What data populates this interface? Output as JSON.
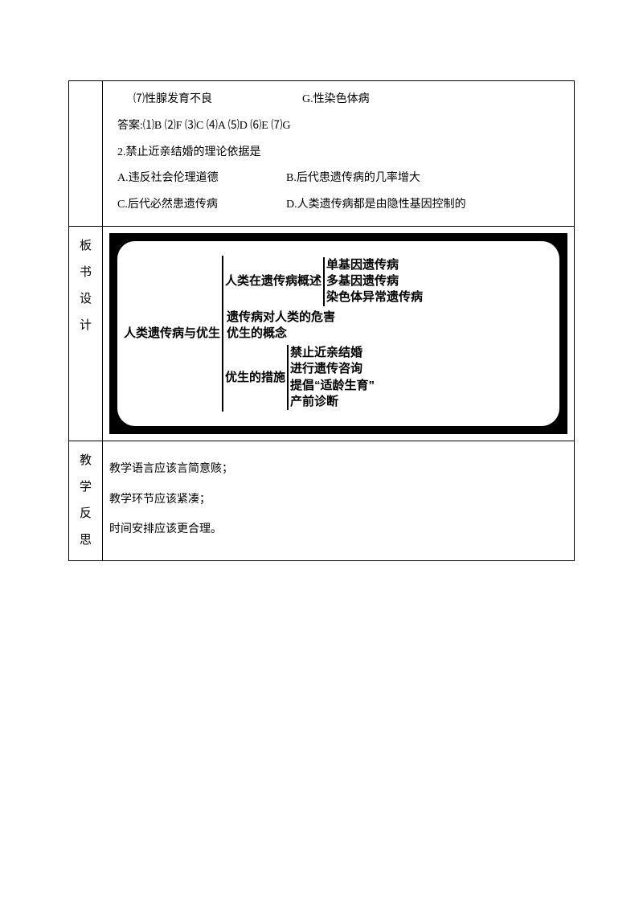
{
  "row1": {
    "line1_left": "⑺性腺发育不良",
    "line1_right": "G.性染色体病",
    "answer": "答案:⑴B  ⑵F  ⑶C  ⑷A  ⑸D  ⑹E  ⑺G",
    "q2": "2.禁止近亲结婚的理论依据是",
    "optA": "A.违反社会伦理道德",
    "optB": "B.后代患遗传病的几率增大",
    "optC": "C.后代必然患遗传病",
    "optD": "D.人类遗传病都是由隐性基因控制的"
  },
  "board": {
    "label1": "板",
    "label2": "书",
    "label3": "设",
    "label4": "计",
    "root": "人类遗传病与优生",
    "branch1": {
      "label": "人类在遗传病概述",
      "leaves": [
        "单基因遗传病",
        "多基因遗传病",
        "染色体异常遗传病"
      ]
    },
    "branch2": {
      "leaves": [
        "遗传病对人类的危害",
        "优生的概念"
      ]
    },
    "branch3": {
      "label": "优生的措施",
      "leaves": [
        "禁止近亲结婚",
        "进行遗传咨询",
        "提倡“适龄生育”",
        "产前诊断"
      ]
    }
  },
  "reflection": {
    "label1": "教",
    "label2": "学",
    "label3": "反",
    "label4": "思",
    "line1": "教学语言应该言简意赅；",
    "line2": "教学环节应该紧凑；",
    "line3": "时间安排应该更合理。"
  },
  "colors": {
    "border": "#000000",
    "bg": "#ffffff",
    "board_bg": "#000000",
    "board_inner_bg": "#ffffff",
    "text": "#000000"
  },
  "fonts": {
    "body_family": "SimSun",
    "board_family": "SimHei",
    "body_size_pt": 10.5,
    "board_size_pt": 11
  }
}
